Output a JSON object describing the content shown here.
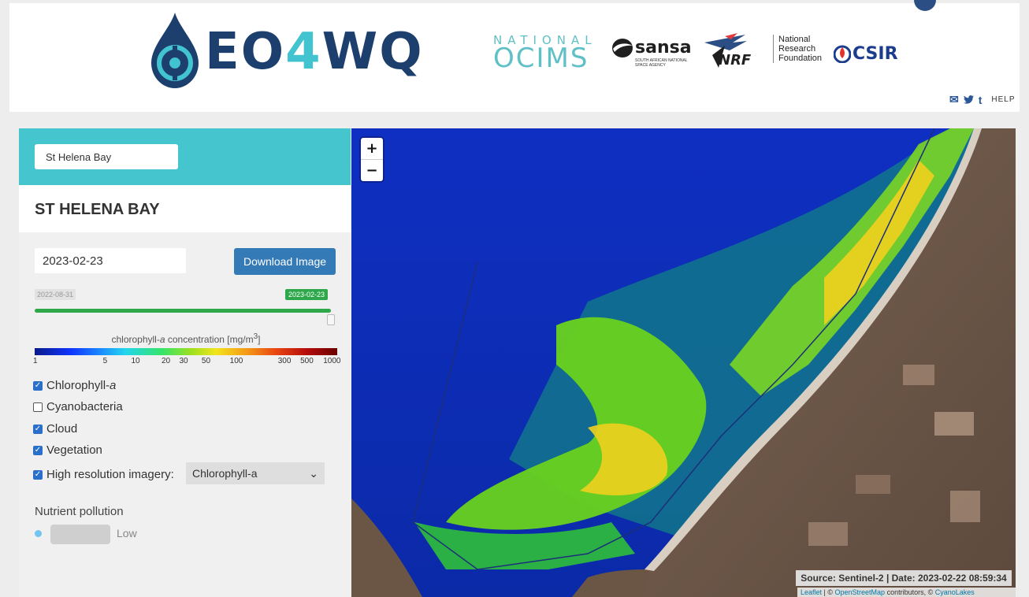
{
  "header": {
    "logo_text_a": "EO",
    "logo_text_four": "4",
    "logo_text_b": "WQ",
    "partners": {
      "ocims_line1": "NATIONAL",
      "ocims_line2": "OCIMS",
      "sansa": "sansa",
      "sansa_sub": "SOUTH AFRICAN NATIONAL SPACE AGENCY",
      "nrf": "NRF",
      "nrf_line1": "National",
      "nrf_line2": "Research",
      "nrf_line3": "Foundation",
      "csir": "CSIR"
    },
    "help_label": "HELP",
    "icons": [
      "envelope-icon",
      "twitter-icon",
      "tumblr-icon"
    ]
  },
  "sidebar": {
    "search_value": "St Helena Bay",
    "site_title": "ST HELENA BAY",
    "date_value": "2023-02-23",
    "download_label": "Download Image",
    "slider": {
      "min_label": "2022-08-31",
      "max_label": "2023-02-23",
      "position_fraction": 1.0
    },
    "legend": {
      "title_prefix": "chlorophyll-",
      "title_italic": "a",
      "title_suffix": " concentration [mg/m",
      "title_sup": "3",
      "title_end": "]",
      "ticks": [
        {
          "label": "1",
          "value": 1
        },
        {
          "label": "5",
          "value": 5
        },
        {
          "label": "10",
          "value": 10
        },
        {
          "label": "20",
          "value": 20
        },
        {
          "label": "30",
          "value": 30
        },
        {
          "label": "50",
          "value": 50
        },
        {
          "label": "100",
          "value": 100
        },
        {
          "label": "300",
          "value": 300
        },
        {
          "label": "500",
          "value": 500
        },
        {
          "label": "1000",
          "value": 1000
        }
      ]
    },
    "layers": {
      "chlorophyll_label": "Chlorophyll-",
      "chlorophyll_italic": "a",
      "chlorophyll_checked": true,
      "cyanobacteria_label": "Cyanobacteria",
      "cyanobacteria_checked": false,
      "cloud_label": "Cloud",
      "cloud_checked": true,
      "vegetation_label": "Vegetation",
      "vegetation_checked": true,
      "hires_label": "High resolution imagery:",
      "hires_checked": true,
      "hires_selected": "Chlorophyll-a"
    },
    "nutrient": {
      "label": "Nutrient pollution",
      "level": "Low",
      "dot_color": "#73c4f0"
    }
  },
  "map": {
    "zoom_in": "+",
    "zoom_out": "−",
    "source_text": "Source: Sentinel-2 | Date: 2023-02-22 08:59:34",
    "attr_leaflet": "Leaflet",
    "attr_sep1": " | © ",
    "attr_osm": "OpenStreetMap",
    "attr_mid": " contributors, © ",
    "attr_cyano": "CyanoLakes"
  },
  "colors": {
    "accent": "#45c6cf",
    "button": "#347ab7",
    "slider": "#2ea84a",
    "brand_navy": "#1d3f6e"
  }
}
